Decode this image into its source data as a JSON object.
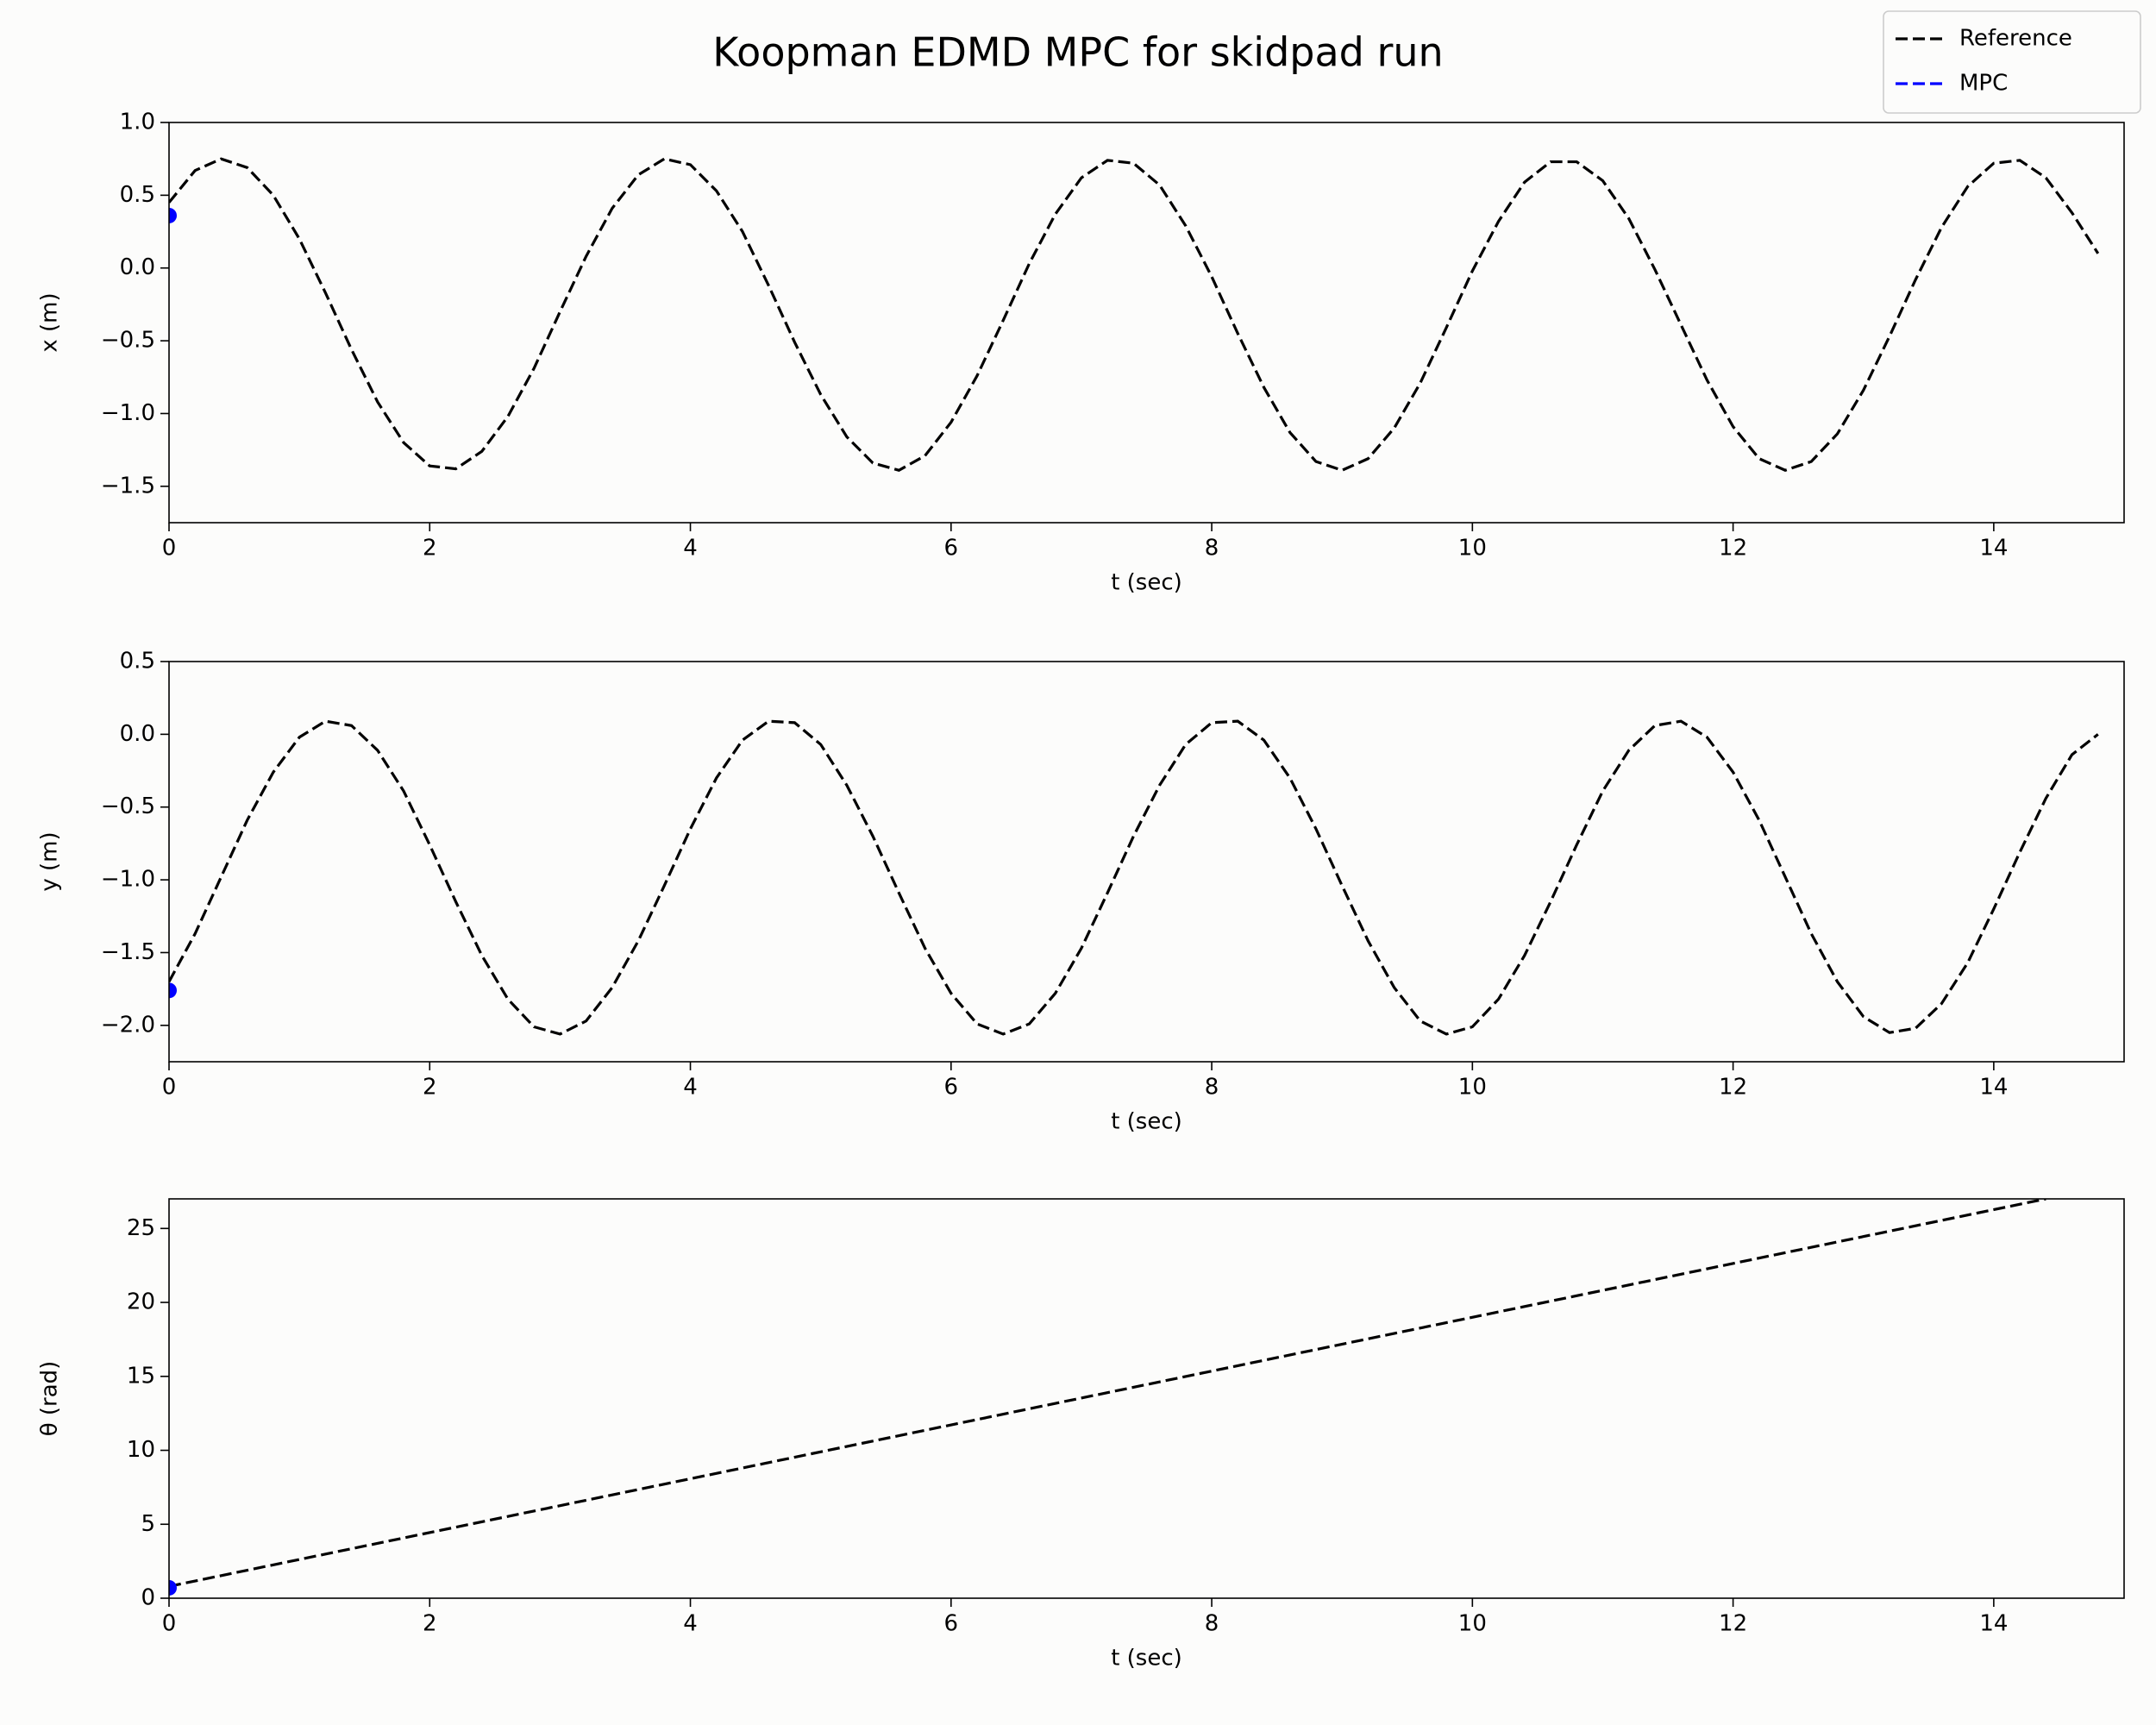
{
  "title": "Koopman EDMD MPC for skidpad run",
  "legend_position": "upper right",
  "chart_data": [
    {
      "type": "line",
      "xlabel": "t (sec)",
      "ylabel": "x (m)",
      "xlim": [
        0,
        15
      ],
      "xticks": [
        0,
        2,
        4,
        6,
        8,
        10,
        12,
        14
      ],
      "ylim": [
        -1.75,
        1.0
      ],
      "yticks": [
        {
          "value": -1.5,
          "label": "−1.5"
        },
        {
          "value": -1.0,
          "label": "−1.0"
        },
        {
          "value": -0.5,
          "label": "−0.5"
        },
        {
          "value": 0,
          "label": "0.0"
        },
        0.5,
        {
          "value": 1.0,
          "label": "1.0"
        }
      ],
      "series": [
        {
          "name": "Reference",
          "color": "#000000",
          "linestyle": "dashed",
          "x": [
            0,
            0.2,
            0.4,
            0.6,
            0.8,
            1.0,
            1.2,
            1.4,
            1.6,
            1.8,
            2.0,
            2.2,
            2.4,
            2.6,
            2.8,
            3.0,
            3.2,
            3.4,
            3.6,
            3.8,
            4.0,
            4.2,
            4.4,
            4.6,
            4.8,
            5.0,
            5.2,
            5.4,
            5.6,
            5.8,
            6.0,
            6.2,
            6.4,
            6.6,
            6.8,
            7.0,
            7.2,
            7.4,
            7.6,
            7.8,
            8.0,
            8.2,
            8.4,
            8.6,
            8.8,
            9.0,
            9.2,
            9.4,
            9.6,
            9.8,
            10.0,
            10.2,
            10.4,
            10.6,
            10.8,
            11.0,
            11.2,
            11.4,
            11.6,
            11.8,
            12.0,
            12.2,
            12.4,
            12.6,
            12.8,
            13.0,
            13.2,
            13.4,
            13.6,
            13.8,
            14.0,
            14.2,
            14.4,
            14.6,
            14.8
          ],
          "values": [
            0.45,
            0.67,
            0.75,
            0.69,
            0.5,
            0.2,
            -0.17,
            -0.56,
            -0.92,
            -1.2,
            -1.36,
            -1.38,
            -1.26,
            -1.02,
            -0.69,
            -0.3,
            0.08,
            0.41,
            0.64,
            0.75,
            0.71,
            0.53,
            0.25,
            -0.12,
            -0.51,
            -0.87,
            -1.16,
            -1.34,
            -1.39,
            -1.29,
            -1.06,
            -0.74,
            -0.36,
            0.03,
            0.37,
            0.62,
            0.74,
            0.72,
            0.57,
            0.29,
            -0.06,
            -0.45,
            -0.82,
            -1.13,
            -1.33,
            -1.39,
            -1.31,
            -1.1,
            -0.79,
            -0.41,
            -0.02,
            0.32,
            0.59,
            0.73,
            0.73,
            0.6,
            0.34,
            -0.01,
            -0.39,
            -0.77,
            -1.09,
            -1.31,
            -1.39,
            -1.33,
            -1.14,
            -0.84,
            -0.47,
            -0.08,
            0.28,
            0.56,
            0.72,
            0.74,
            0.62,
            0.38,
            0.1
          ]
        },
        {
          "name": "MPC",
          "color": "#0000ff",
          "linestyle": "dashed",
          "marker": "o",
          "x": [
            0
          ],
          "values": [
            0.36
          ]
        }
      ]
    },
    {
      "type": "line",
      "xlabel": "t (sec)",
      "ylabel": "y (m)",
      "xlim": [
        0,
        15
      ],
      "xticks": [
        0,
        2,
        4,
        6,
        8,
        10,
        12,
        14
      ],
      "ylim": [
        -2.25,
        0.5
      ],
      "yticks": [
        {
          "value": -2.0,
          "label": "−2.0"
        },
        {
          "value": -1.5,
          "label": "−1.5"
        },
        {
          "value": -1.0,
          "label": "−1.0"
        },
        {
          "value": -0.5,
          "label": "−0.5"
        },
        {
          "value": 0,
          "label": "0.0"
        },
        0.5
      ],
      "series": [
        {
          "name": "Reference",
          "color": "#000000",
          "linestyle": "dashed",
          "x": [
            0,
            0.2,
            0.4,
            0.6,
            0.8,
            1.0,
            1.2,
            1.4,
            1.6,
            1.8,
            2.0,
            2.2,
            2.4,
            2.6,
            2.8,
            3.0,
            3.2,
            3.4,
            3.6,
            3.8,
            4.0,
            4.2,
            4.4,
            4.6,
            4.8,
            5.0,
            5.2,
            5.4,
            5.6,
            5.8,
            6.0,
            6.2,
            6.4,
            6.6,
            6.8,
            7.0,
            7.2,
            7.4,
            7.6,
            7.8,
            8.0,
            8.2,
            8.4,
            8.6,
            8.8,
            9.0,
            9.2,
            9.4,
            9.6,
            9.8,
            10.0,
            10.2,
            10.4,
            10.6,
            10.8,
            11.0,
            11.2,
            11.4,
            11.6,
            11.8,
            12.0,
            12.2,
            12.4,
            12.6,
            12.8,
            13.0,
            13.2,
            13.4,
            13.6,
            13.8,
            14.0,
            14.2,
            14.4,
            14.6,
            14.8
          ],
          "values": [
            -1.7,
            -1.37,
            -0.98,
            -0.59,
            -0.26,
            -0.02,
            0.09,
            0.06,
            -0.11,
            -0.39,
            -0.76,
            -1.15,
            -1.52,
            -1.82,
            -2.01,
            -2.06,
            -1.97,
            -1.74,
            -1.42,
            -1.04,
            -0.65,
            -0.3,
            -0.04,
            0.09,
            0.08,
            -0.07,
            -0.35,
            -0.7,
            -1.09,
            -1.47,
            -1.78,
            -1.99,
            -2.06,
            -1.99,
            -1.78,
            -1.47,
            -1.09,
            -0.7,
            -0.35,
            -0.07,
            0.08,
            0.09,
            -0.04,
            -0.3,
            -0.65,
            -1.04,
            -1.42,
            -1.74,
            -1.97,
            -2.06,
            -2.01,
            -1.82,
            -1.52,
            -1.15,
            -0.76,
            -0.39,
            -0.11,
            0.06,
            0.09,
            -0.02,
            -0.26,
            -0.59,
            -0.98,
            -1.37,
            -1.7,
            -1.94,
            -2.05,
            -2.02,
            -1.85,
            -1.57,
            -1.2,
            -0.81,
            -0.44,
            -0.14,
            0.0
          ]
        },
        {
          "name": "MPC",
          "color": "#0000ff",
          "linestyle": "dashed",
          "marker": "o",
          "x": [
            0
          ],
          "values": [
            -1.76
          ]
        }
      ]
    },
    {
      "type": "line",
      "xlabel": "t (sec)",
      "ylabel": "θ (rad)",
      "xlim": [
        0,
        15
      ],
      "xticks": [
        0,
        2,
        4,
        6,
        8,
        10,
        12,
        14
      ],
      "ylim": [
        0,
        27
      ],
      "yticks": [
        0,
        5,
        10,
        15,
        20,
        25
      ],
      "series": [
        {
          "name": "Reference",
          "color": "#000000",
          "linestyle": "dashed",
          "x": [
            0,
            14.4
          ],
          "values": [
            0.8,
            27
          ]
        },
        {
          "name": "MPC",
          "color": "#0000ff",
          "linestyle": "dashed",
          "marker": "o",
          "x": [
            0
          ],
          "values": [
            0.7
          ]
        }
      ]
    }
  ]
}
